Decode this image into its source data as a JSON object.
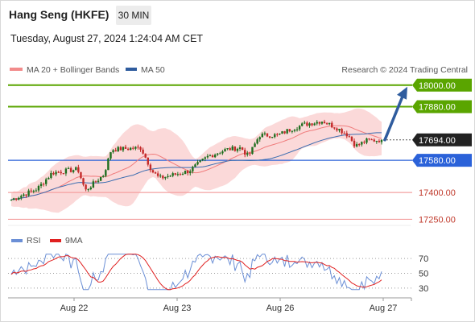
{
  "header": {
    "title": "Hang Seng (HKFE)",
    "timeframe": "30 MIN",
    "datetime": "Tuesday, August 27, 2024 1:24:04 AM CET"
  },
  "legend": {
    "items": [
      {
        "label": "MA 20 + Bollinger Bands",
        "color": "#f28b8b"
      },
      {
        "label": "MA 50",
        "color": "#2f5c9e"
      }
    ],
    "watermark": "Research © 2024 Trading Central"
  },
  "colors": {
    "up": "#1f6e1f",
    "down": "#c42a2a",
    "bollinger": "#fbd9d9",
    "ma20": "#f07c7c",
    "ma50": "#3b6db0",
    "resistance": "#5aa500",
    "support": "#2b62d9",
    "pivot_support": "#f4a0a0",
    "arrow": "#2f5c9e",
    "rsi": "#6b8fd6",
    "rsi_ma": "#e02020"
  },
  "chart_data": [
    {
      "type": "candlestick",
      "title": "",
      "series": [
        {
          "name": "Hang Seng (HKFE)",
          "start": 17360,
          "end": 17694,
          "high": 17810,
          "low": 17350
        },
        {
          "name": "MA 20 + Bollinger Bands"
        },
        {
          "name": "MA 50"
        }
      ],
      "ylim": [
        17180,
        18080
      ],
      "levels": [
        {
          "value": 18000,
          "label": "18000.00",
          "kind": "resistance"
        },
        {
          "value": 17880,
          "label": "17880.00",
          "kind": "resistance"
        },
        {
          "value": 17694,
          "label": "17694.00",
          "kind": "last"
        },
        {
          "value": 17580,
          "label": "17580.00",
          "kind": "pivot"
        },
        {
          "value": 17400,
          "label": "17400.00",
          "kind": "support"
        },
        {
          "value": 17250,
          "label": "17250.00",
          "kind": "support"
        }
      ],
      "projection": {
        "from": 17694,
        "to": 18000
      }
    },
    {
      "type": "line",
      "title": "",
      "series": [
        {
          "name": "RSI"
        },
        {
          "name": "9MA"
        }
      ],
      "ylim": [
        20,
        80
      ],
      "y_ticks": [
        70,
        50,
        30
      ],
      "x_ticks": [
        "Aug 22",
        "Aug 23",
        "Aug 26",
        "Aug 27"
      ]
    }
  ]
}
